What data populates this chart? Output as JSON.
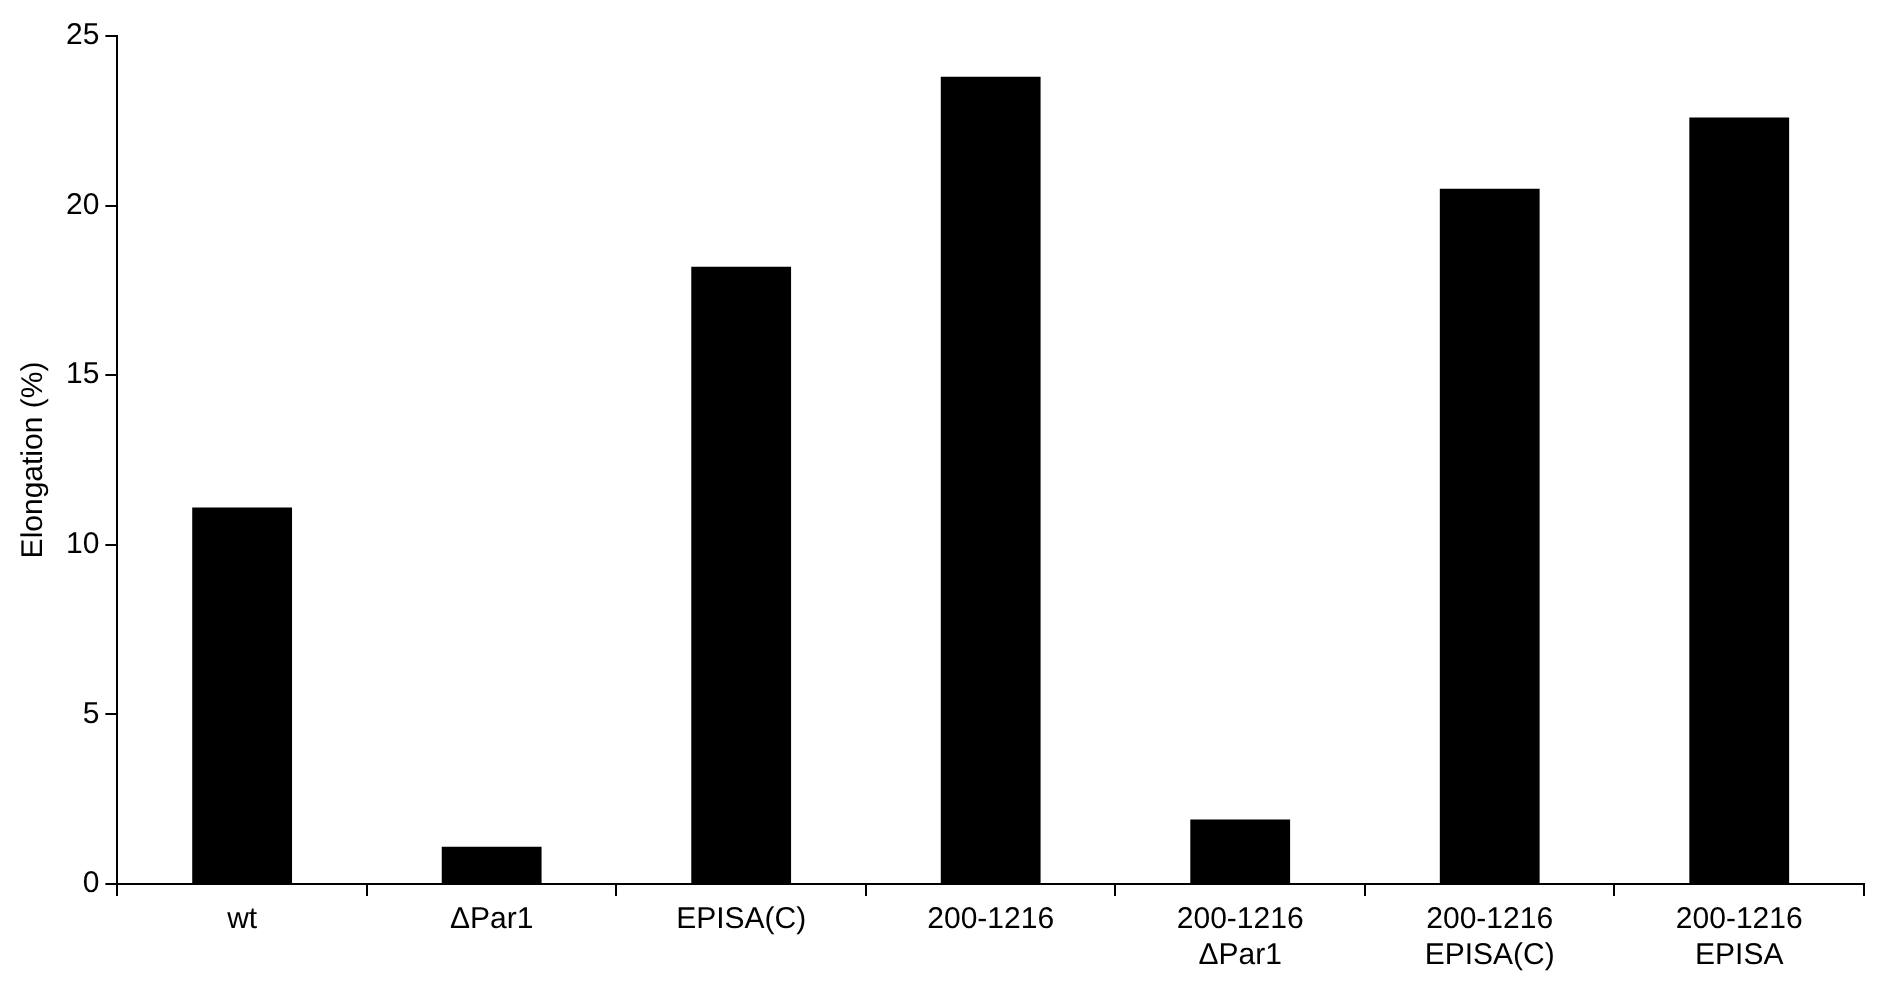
{
  "chart_data": {
    "type": "bar",
    "ylabel": "Elongation (%)",
    "categories": [
      "wt",
      "ΔPar1",
      "EPISA(C)",
      "200-1216",
      "200-1216\nΔPar1",
      "200-1216\nEPISA(C)",
      "200-1216\nEPISA"
    ],
    "values": [
      11.1,
      1.1,
      18.2,
      23.8,
      1.9,
      20.5,
      22.6
    ],
    "color": "#000000",
    "ylim": [
      0,
      25
    ],
    "yticks": [
      0,
      5,
      10,
      15,
      20,
      25
    ],
    "grid": false,
    "legend": false
  }
}
